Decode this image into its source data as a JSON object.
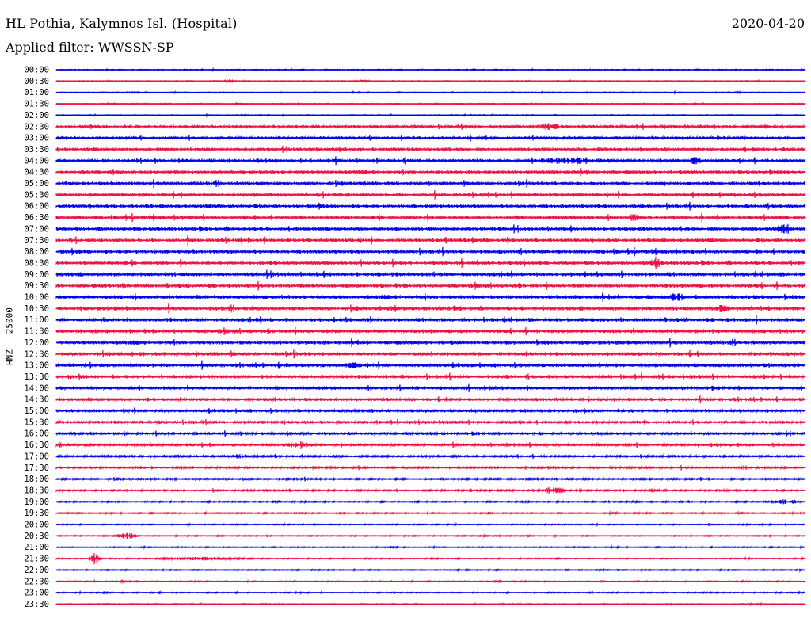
{
  "header": {
    "station": "HL Pothia, Kalymnos Isl. (Hospital)",
    "date": "2020-04-20",
    "filter": "Applied filter: WWSSN-SP"
  },
  "chart_data": {
    "type": "line",
    "title": "HL Pothia, Kalymnos Isl. (Hospital)",
    "date": "2020-04-20",
    "ylabel": "HNZ - 25000",
    "row_labels": [
      "00:00",
      "00:30",
      "01:00",
      "01:30",
      "02:00",
      "02:30",
      "03:00",
      "03:30",
      "04:00",
      "04:30",
      "05:00",
      "05:30",
      "06:00",
      "06:30",
      "07:00",
      "07:30",
      "08:00",
      "08:30",
      "09:00",
      "09:30",
      "10:00",
      "10:30",
      "11:00",
      "11:30",
      "12:00",
      "12:30",
      "13:00",
      "13:30",
      "14:00",
      "14:30",
      "15:00",
      "15:30",
      "16:00",
      "16:30",
      "17:00",
      "17:30",
      "18:00",
      "18:30",
      "19:00",
      "19:30",
      "20:00",
      "20:30",
      "21:00",
      "21:30",
      "22:00",
      "22:30",
      "23:00",
      "23:30"
    ],
    "series_colors": [
      "#0000ee",
      "#ee1144"
    ],
    "row_duration_minutes": 30
  }
}
